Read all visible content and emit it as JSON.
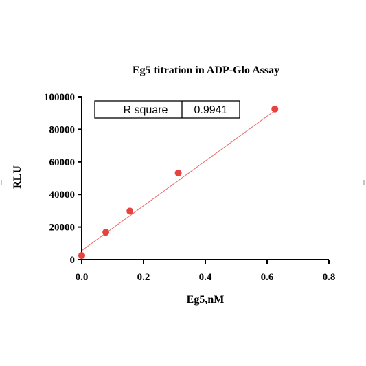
{
  "chart_data": {
    "type": "scatter",
    "title": "Eg5 titration in ADP-Glo Assay",
    "xlabel": "Eg5,nM",
    "ylabel": "RLU",
    "xlim": [
      0,
      0.8
    ],
    "ylim": [
      0,
      100000
    ],
    "xticks": [
      "0.0",
      "0.2",
      "0.4",
      "0.6",
      "0.8"
    ],
    "yticks": [
      "0",
      "20000",
      "40000",
      "60000",
      "80000",
      "100000"
    ],
    "grid": false,
    "series": [
      {
        "points": [
          {
            "x": 0.0,
            "y": 2500
          },
          {
            "x": 0.078,
            "y": 16800
          },
          {
            "x": 0.156,
            "y": 29800
          },
          {
            "x": 0.3125,
            "y": 53200
          },
          {
            "x": 0.625,
            "y": 92500
          }
        ],
        "color": "#e8423f"
      }
    ],
    "fit_line": {
      "type": "linear",
      "x": [
        0.0,
        0.625
      ],
      "y": [
        5500,
        91500
      ],
      "color": "#e86a68"
    },
    "stats_table": {
      "label": "R square",
      "value": "0.9941"
    }
  }
}
